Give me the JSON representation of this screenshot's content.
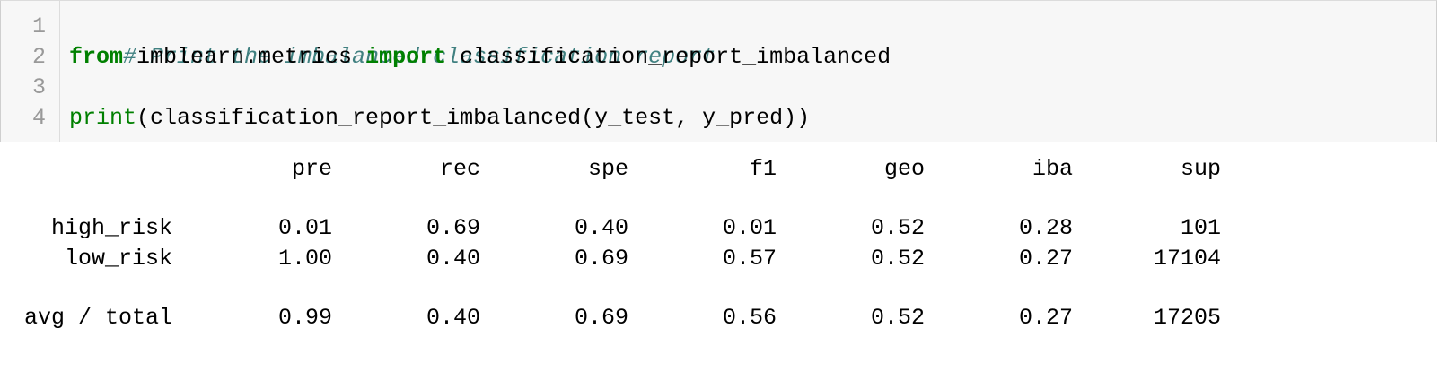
{
  "code_cell": {
    "lines": [
      {
        "number": "1",
        "comment": "# Print the imbalanced classification report"
      },
      {
        "number": "2",
        "kw_from": "from",
        "module": " imblearn.metrics ",
        "kw_import": "import",
        "name": " classification_report_imbalanced"
      },
      {
        "number": "3"
      },
      {
        "number": "4",
        "func": "print",
        "rest": "(classification_report_imbalanced(y_test, y_pred))"
      }
    ]
  },
  "report": {
    "headers": [
      "pre",
      "rec",
      "spe",
      "f1",
      "geo",
      "iba",
      "sup"
    ],
    "rows": [
      {
        "label": "high_risk",
        "values": [
          "0.01",
          "0.69",
          "0.40",
          "0.01",
          "0.52",
          "0.28",
          "101"
        ]
      },
      {
        "label": "low_risk",
        "values": [
          "1.00",
          "0.40",
          "0.69",
          "0.57",
          "0.52",
          "0.27",
          "17104"
        ]
      },
      {
        "label": "avg / total",
        "values": [
          "0.99",
          "0.40",
          "0.69",
          "0.56",
          "0.52",
          "0.27",
          "17205"
        ]
      }
    ]
  }
}
